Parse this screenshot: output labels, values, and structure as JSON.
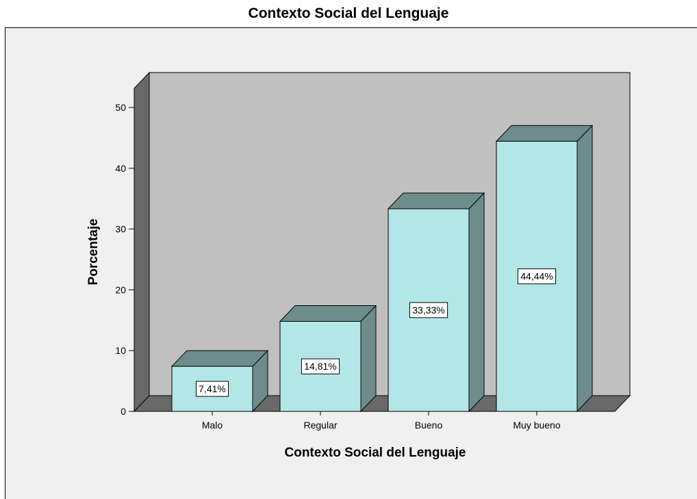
{
  "chart_data": {
    "type": "bar",
    "title": "Contexto Social del Lenguaje",
    "xlabel": "Contexto Social del Lenguaje",
    "ylabel": "Porcentaje",
    "categories": [
      "Malo",
      "Regular",
      "Bueno",
      "Muy bueno"
    ],
    "values": [
      7.41,
      14.81,
      33.33,
      44.44
    ],
    "data_labels": [
      "7,41%",
      "14,81%",
      "33,33%",
      "44,44%"
    ],
    "ylim": [
      0,
      50
    ],
    "yticks": [
      0,
      10,
      20,
      30,
      40,
      50
    ],
    "grid": false,
    "style": "3d",
    "colors": {
      "bar_front": "#b3e6e6",
      "bar_top": "#6e8c8c",
      "bar_side": "#6e8c8c",
      "back_wall": "#c0c0c0",
      "side_wall": "#696969",
      "floor": "#696969",
      "frame": "#f0f0f0"
    }
  }
}
